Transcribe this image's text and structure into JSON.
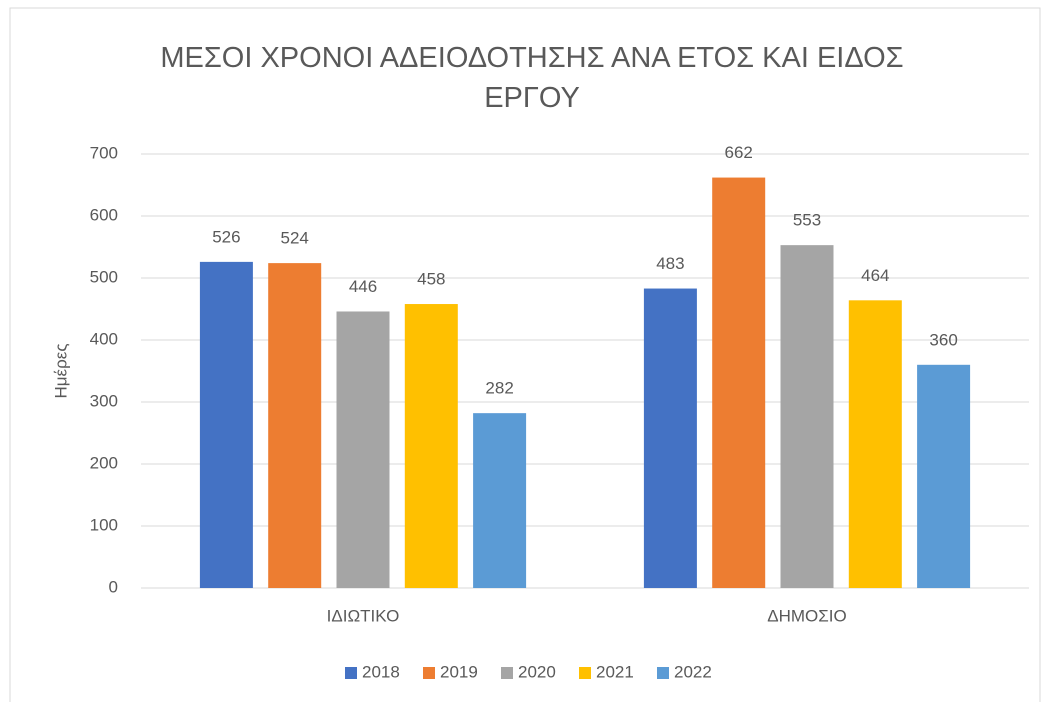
{
  "chart_data": {
    "type": "bar",
    "title": "ΜΕΣΟΙ ΧΡΟΝΟΙ ΑΔΕΙΟΔΟΤΗΣΗΣ ΑΝΑ ΕΤΟΣ ΚΑΙ ΕΙΔΟΣ ΕΡΓΟΥ",
    "y_label": "Ημέρες",
    "categories": [
      "ΙΔΙΩΤΙΚΟ",
      "ΔΗΜΟΣΙΟ"
    ],
    "series": [
      {
        "name": "2018",
        "color": "#4472c4",
        "values": [
          526,
          483
        ]
      },
      {
        "name": "2019",
        "color": "#ed7d31",
        "values": [
          524,
          662
        ]
      },
      {
        "name": "2020",
        "color": "#a5a5a5",
        "values": [
          446,
          553
        ]
      },
      {
        "name": "2021",
        "color": "#ffc000",
        "values": [
          458,
          464
        ]
      },
      {
        "name": "2022",
        "color": "#5b9bd5",
        "values": [
          282,
          360
        ]
      }
    ],
    "ylim": [
      0,
      700
    ],
    "yticks": [
      0,
      100,
      200,
      300,
      400,
      500,
      600,
      700
    ],
    "grid": true,
    "legend": "bottom"
  }
}
